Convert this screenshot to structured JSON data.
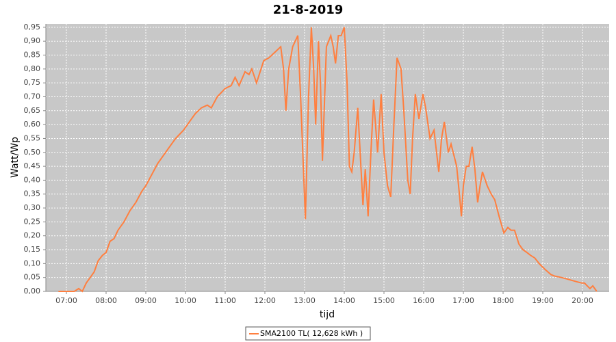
{
  "chart_data": {
    "type": "line",
    "title": "21-8-2019",
    "x_label": "tijd",
    "y_label": "Watt/Wp",
    "x": [
      6.8,
      7.2,
      7.31,
      7.4,
      7.5,
      7.6,
      7.7,
      7.8,
      7.91,
      8.0,
      8.1,
      8.2,
      8.3,
      8.45,
      8.6,
      8.75,
      8.9,
      9.0,
      9.15,
      9.3,
      9.45,
      9.6,
      9.75,
      9.95,
      10.1,
      10.25,
      10.4,
      10.55,
      10.65,
      10.8,
      11.0,
      11.15,
      11.25,
      11.35,
      11.5,
      11.6,
      11.67,
      11.79,
      11.97,
      12.1,
      12.25,
      12.4,
      12.47,
      12.53,
      12.6,
      12.7,
      12.83,
      12.9,
      13.02,
      13.1,
      13.17,
      13.23,
      13.28,
      13.35,
      13.4,
      13.45,
      13.55,
      13.66,
      13.72,
      13.78,
      13.85,
      13.92,
      14.0,
      14.07,
      14.13,
      14.19,
      14.25,
      14.34,
      14.4,
      14.47,
      14.53,
      14.6,
      14.67,
      14.74,
      14.84,
      14.93,
      15.0,
      15.09,
      15.17,
      15.25,
      15.33,
      15.43,
      15.5,
      15.6,
      15.66,
      15.72,
      15.79,
      15.88,
      15.98,
      16.05,
      16.16,
      16.26,
      16.38,
      16.45,
      16.52,
      16.62,
      16.69,
      16.76,
      16.83,
      16.9,
      16.95,
      17.0,
      17.07,
      17.14,
      17.22,
      17.29,
      17.36,
      17.42,
      17.48,
      17.6,
      17.7,
      17.79,
      17.9,
      18.02,
      18.12,
      18.2,
      18.29,
      18.4,
      18.5,
      18.6,
      18.69,
      18.8,
      18.91,
      19.05,
      19.21,
      19.3,
      19.47,
      19.6,
      19.72,
      19.85,
      19.98,
      20.05,
      20.12,
      20.19,
      20.26,
      20.36
    ],
    "series": [
      {
        "name": "SMA2100 TL( 12,628 kWh )",
        "color": "#ff7f3f",
        "values": [
          0,
          0,
          0.01,
          0,
          0.03,
          0.05,
          0.07,
          0.11,
          0.13,
          0.14,
          0.18,
          0.19,
          0.22,
          0.25,
          0.29,
          0.32,
          0.36,
          0.38,
          0.42,
          0.46,
          0.49,
          0.52,
          0.55,
          0.58,
          0.61,
          0.64,
          0.66,
          0.67,
          0.66,
          0.7,
          0.73,
          0.74,
          0.77,
          0.74,
          0.79,
          0.78,
          0.8,
          0.75,
          0.83,
          0.84,
          0.86,
          0.88,
          0.8,
          0.65,
          0.8,
          0.88,
          0.92,
          0.7,
          0.26,
          0.7,
          0.95,
          0.8,
          0.6,
          0.9,
          0.75,
          0.47,
          0.88,
          0.92,
          0.88,
          0.82,
          0.92,
          0.92,
          0.95,
          0.75,
          0.45,
          0.43,
          0.5,
          0.66,
          0.5,
          0.31,
          0.44,
          0.27,
          0.5,
          0.69,
          0.5,
          0.71,
          0.5,
          0.38,
          0.34,
          0.6,
          0.84,
          0.8,
          0.65,
          0.4,
          0.35,
          0.55,
          0.71,
          0.62,
          0.71,
          0.66,
          0.55,
          0.58,
          0.43,
          0.55,
          0.61,
          0.5,
          0.53,
          0.49,
          0.45,
          0.35,
          0.27,
          0.38,
          0.45,
          0.45,
          0.52,
          0.44,
          0.32,
          0.38,
          0.43,
          0.38,
          0.35,
          0.33,
          0.27,
          0.21,
          0.23,
          0.22,
          0.22,
          0.17,
          0.15,
          0.14,
          0.13,
          0.12,
          0.1,
          0.08,
          0.06,
          0.055,
          0.05,
          0.045,
          0.04,
          0.035,
          0.03,
          0.03,
          0.02,
          0.01,
          0.02,
          0
        ]
      }
    ],
    "xlim": [
      6.483,
      20.672
    ],
    "ylim": [
      0,
      0.962
    ],
    "xticks": [
      {
        "value": 7,
        "label": "07:00"
      },
      {
        "value": 8,
        "label": "08:00"
      },
      {
        "value": 9,
        "label": "09:00"
      },
      {
        "value": 10,
        "label": "10:00"
      },
      {
        "value": 11,
        "label": "11:00"
      },
      {
        "value": 12,
        "label": "12:00"
      },
      {
        "value": 13,
        "label": "13:00"
      },
      {
        "value": 14,
        "label": "14:00"
      },
      {
        "value": 15,
        "label": "15:00"
      },
      {
        "value": 16,
        "label": "16:00"
      },
      {
        "value": 17,
        "label": "17:00"
      },
      {
        "value": 18,
        "label": "18:00"
      },
      {
        "value": 19,
        "label": "19:00"
      },
      {
        "value": 20,
        "label": "20:00"
      }
    ],
    "yticks": [
      {
        "value": 0,
        "label": "0,00"
      },
      {
        "value": 0.05,
        "label": "0,05"
      },
      {
        "value": 0.1,
        "label": "0,10"
      },
      {
        "value": 0.15,
        "label": "0,15"
      },
      {
        "value": 0.2,
        "label": "0,20"
      },
      {
        "value": 0.25,
        "label": "0,25"
      },
      {
        "value": 0.3,
        "label": "0,30"
      },
      {
        "value": 0.35,
        "label": "0,35"
      },
      {
        "value": 0.4,
        "label": "0,40"
      },
      {
        "value": 0.45,
        "label": "0,45"
      },
      {
        "value": 0.5,
        "label": "0,50"
      },
      {
        "value": 0.55,
        "label": "0,55"
      },
      {
        "value": 0.6,
        "label": "0,60"
      },
      {
        "value": 0.65,
        "label": "0,65"
      },
      {
        "value": 0.7,
        "label": "0,70"
      },
      {
        "value": 0.75,
        "label": "0,75"
      },
      {
        "value": 0.8,
        "label": "0,80"
      },
      {
        "value": 0.85,
        "label": "0,85"
      },
      {
        "value": 0.9,
        "label": "0,90"
      },
      {
        "value": 0.95,
        "label": "0,95"
      }
    ],
    "grid": true,
    "legend": "bottom"
  }
}
